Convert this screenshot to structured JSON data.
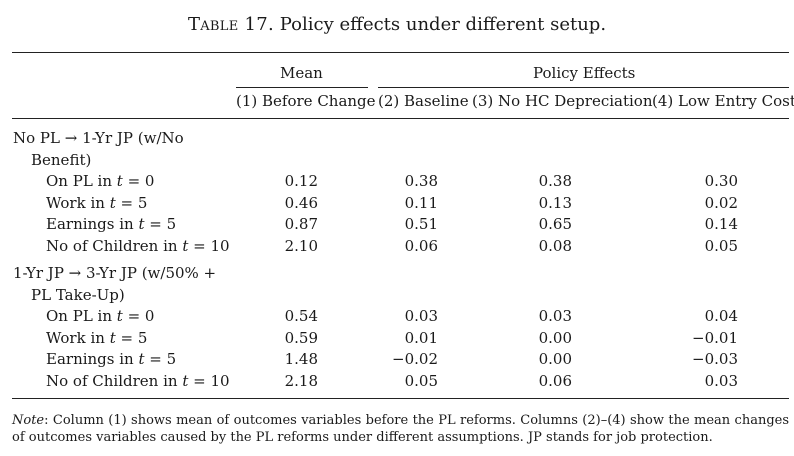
{
  "caption": {
    "table_name": "Table 17.",
    "title": "Policy effects under different setup."
  },
  "header": {
    "group_mean": "Mean",
    "group_effects": "Policy Effects",
    "columns": [
      "(1) Before Change",
      "(2) Baseline",
      "(3) No HC Depreciation",
      "(4) Low Entry Cost"
    ]
  },
  "panels": [
    {
      "title_line1": "No PL → 1-Yr JP (w/No",
      "title_line2": "Benefit)",
      "rows": [
        {
          "label": "On PL in t = 0",
          "values": [
            "0.12",
            "0.38",
            "0.38",
            "0.30"
          ]
        },
        {
          "label": "Work in t = 5",
          "values": [
            "0.46",
            "0.11",
            "0.13",
            "0.02"
          ]
        },
        {
          "label": "Earnings in t = 5",
          "values": [
            "0.87",
            "0.51",
            "0.65",
            "0.14"
          ]
        },
        {
          "label": "No of Children in t = 10",
          "values": [
            "2.10",
            "0.06",
            "0.08",
            "0.05"
          ]
        }
      ]
    },
    {
      "title_line1": "1-Yr JP → 3-Yr JP (w/50% +",
      "title_line2": "PL Take-Up)",
      "rows": [
        {
          "label": "On PL in t = 0",
          "values": [
            "0.54",
            "0.03",
            "0.03",
            "0.04"
          ]
        },
        {
          "label": "Work in t = 5",
          "values": [
            "0.59",
            "0.01",
            "0.00",
            "−0.01"
          ]
        },
        {
          "label": "Earnings in t = 5",
          "values": [
            "1.48",
            "−0.02",
            "0.00",
            "−0.03"
          ]
        },
        {
          "label": "No of Children in t = 10",
          "values": [
            "2.18",
            "0.05",
            "0.06",
            "0.03"
          ]
        }
      ]
    }
  ],
  "note": {
    "label": "Note",
    "text": "Column (1) shows mean of outcomes variables before the PL reforms. Columns (2)–(4) show the mean changes of outcomes variables caused by the PL reforms under different assumptions. JP stands for job protection."
  }
}
